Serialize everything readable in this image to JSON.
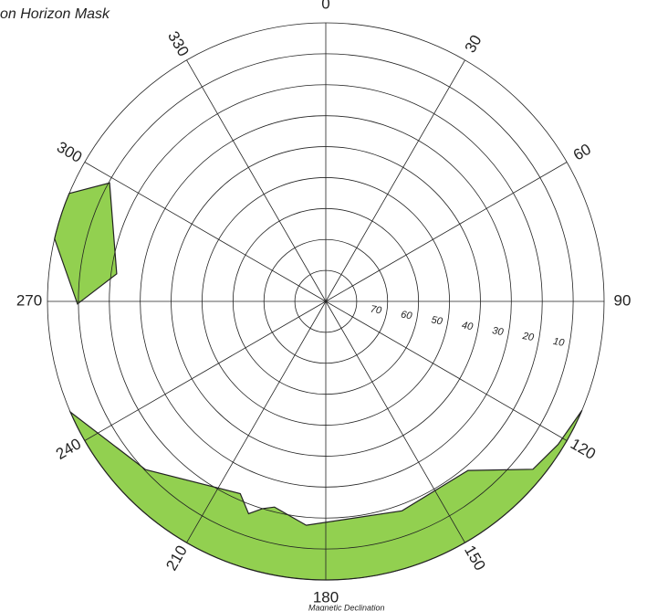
{
  "chart_data": {
    "type": "polar-mask",
    "title": "on Horizon Mask",
    "footnote": "Magnetic Declination",
    "theta_ticks": [
      0,
      30,
      60,
      90,
      120,
      150,
      180,
      210,
      240,
      270,
      300,
      330
    ],
    "rlim": [
      0,
      90
    ],
    "rticks": [
      10,
      20,
      30,
      40,
      50,
      60,
      70,
      {
        "value": 80,
        "label": null
      }
    ],
    "color": "#92d050",
    "regions": [
      {
        "azimuth": [
          113,
          121.6,
          129,
          139.9,
          160,
          185,
          194,
          197,
          200,
          204,
          227,
          246.6
        ],
        "elevation": [
          0,
          1.8,
          3.8,
          18.6,
          18,
          17.4,
          21.5,
          20,
          17,
          22,
          10.3,
          0
        ]
      },
      {
        "azimuth": [
          292.8,
          298.7,
          277.5,
          269.4,
          283
        ],
        "elevation": [
          0,
          10.3,
          21.8,
          9.7,
          0
        ]
      }
    ]
  }
}
